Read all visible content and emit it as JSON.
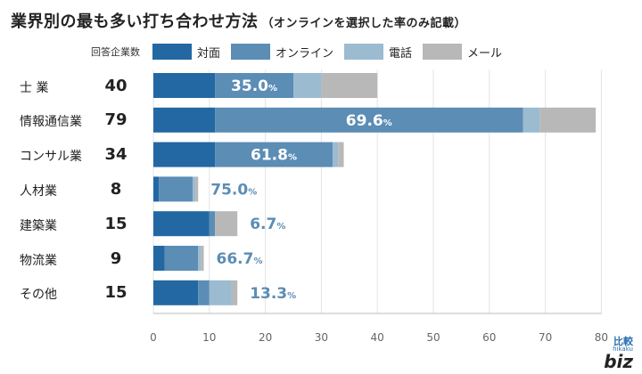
{
  "title": "業界別の最も多い打ち合わせ方法",
  "subtitle": "（オンラインを選択した率のみ記載）",
  "legend_count_label": "回答企業数",
  "logo": {
    "top": "比較",
    "mid": "hikaku",
    "main": "biz"
  },
  "chart_data": {
    "type": "bar",
    "orientation": "horizontal",
    "stacked": true,
    "title": "業界別の最も多い打ち合わせ方法",
    "subtitle": "（オンラインを選択した率のみ記載）",
    "xlabel": "",
    "ylabel": "",
    "xlim": [
      0,
      80
    ],
    "xticks": [
      0,
      10,
      20,
      30,
      40,
      50,
      60,
      70,
      80
    ],
    "grid": true,
    "legend_position": "top",
    "categories": [
      "士 業",
      "情報通信業",
      "コンサル業",
      "人材業",
      "建築業",
      "物流業",
      "その他"
    ],
    "counts": [
      40,
      79,
      34,
      8,
      15,
      9,
      15
    ],
    "series": [
      {
        "name": "対面",
        "color": "#2368a2",
        "values": [
          11,
          11,
          11,
          1,
          10,
          2,
          8
        ]
      },
      {
        "name": "オンライン",
        "color": "#5b8db5",
        "values": [
          14,
          55,
          21,
          6,
          1,
          6,
          2
        ]
      },
      {
        "name": "電話",
        "color": "#9bbbd0",
        "values": [
          5,
          3,
          1,
          0.5,
          0,
          0.5,
          4
        ]
      },
      {
        "name": "メール",
        "color": "#b8b8b8",
        "values": [
          10,
          10,
          1,
          0.5,
          4,
          0.5,
          1
        ]
      }
    ],
    "online_rate_labels": [
      "35.0%",
      "69.6%",
      "61.8%",
      "75.0%",
      "6.7%",
      "66.7%",
      "13.3%"
    ],
    "label_inside": [
      true,
      true,
      true,
      false,
      false,
      false,
      false
    ]
  }
}
